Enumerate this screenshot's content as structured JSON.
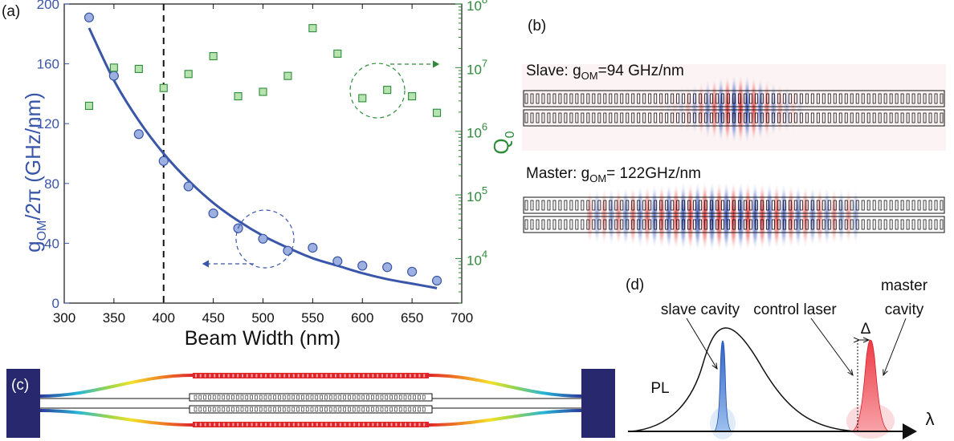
{
  "panel_a": {
    "label": "(a)",
    "chart_data": {
      "type": "scatter",
      "xlabel": "Beam Width (nm)",
      "ylabel_left": {
        "main": "g",
        "sub": "OM",
        "rest": "/2π (GHz/nm)"
      },
      "ylabel_right": {
        "main": "Q",
        "sub": "0"
      },
      "xlim": [
        300,
        700
      ],
      "ylim_left": [
        0,
        200
      ],
      "ylim_right_log10": [
        3.3,
        8
      ],
      "x_ticks": [
        "300",
        "350",
        "400",
        "450",
        "500",
        "550",
        "600",
        "650",
        "700"
      ],
      "y_left_ticks": [
        "0",
        "40",
        "80",
        "120",
        "160",
        "200"
      ],
      "y_right_ticks": [
        {
          "base": "10",
          "exp": "4",
          "value": 4
        },
        {
          "base": "10",
          "exp": "5",
          "value": 5
        },
        {
          "base": "10",
          "exp": "6",
          "value": 6
        },
        {
          "base": "10",
          "exp": "7",
          "value": 7
        },
        {
          "base": "10",
          "exp": "8",
          "value": 8
        }
      ],
      "vline_x": 400,
      "series": [
        {
          "axis": "left",
          "marker": "circle",
          "color": "#3a56a8",
          "x": [
            325,
            350,
            375,
            400,
            425,
            450,
            475,
            500,
            525,
            550,
            575,
            600,
            625,
            650,
            675
          ],
          "y": [
            191,
            152,
            113,
            95,
            78,
            60,
            50,
            43,
            35,
            37,
            28,
            25,
            24,
            21,
            15
          ]
        },
        {
          "axis": "left",
          "type": "line",
          "color": "#3a56a8",
          "x": [
            325,
            350,
            375,
            400,
            425,
            450,
            475,
            500,
            525,
            550,
            575,
            600,
            625,
            650,
            675
          ],
          "y": [
            184,
            149,
            122,
            100,
            82,
            67,
            55,
            45,
            37,
            30,
            25,
            20,
            16,
            13,
            10
          ]
        },
        {
          "axis": "right",
          "marker": "square",
          "color": "#2e8b3a",
          "x": [
            325,
            350,
            375,
            400,
            425,
            450,
            475,
            500,
            525,
            550,
            575,
            600,
            625,
            650,
            675
          ],
          "y_log10": [
            6.4,
            7.0,
            6.98,
            6.68,
            6.9,
            7.18,
            6.55,
            6.62,
            6.87,
            7.62,
            7.22,
            6.52,
            6.65,
            6.55,
            6.29
          ]
        }
      ]
    }
  },
  "panel_b": {
    "label": "(b)",
    "slave": {
      "prefix": "Slave: ",
      "g": "g",
      "sub": "OM",
      "value": "=94 GHz/nm"
    },
    "master": {
      "prefix": "Master: ",
      "g": "g",
      "sub": "OM",
      "value": "= 122GHz/nm"
    }
  },
  "panel_c": {
    "label": "(c)"
  },
  "panel_d": {
    "label": "(d)",
    "slave_cavity": "slave cavity",
    "control_laser": "control laser",
    "master_line1": "master",
    "master_line2": "cavity",
    "delta": "Δ",
    "pl": "PL",
    "lambda": "λ"
  },
  "colors": {
    "blue": "#3a56a8",
    "green": "#2e8b3a",
    "red": "#e8303a",
    "navy": "#27286e"
  }
}
